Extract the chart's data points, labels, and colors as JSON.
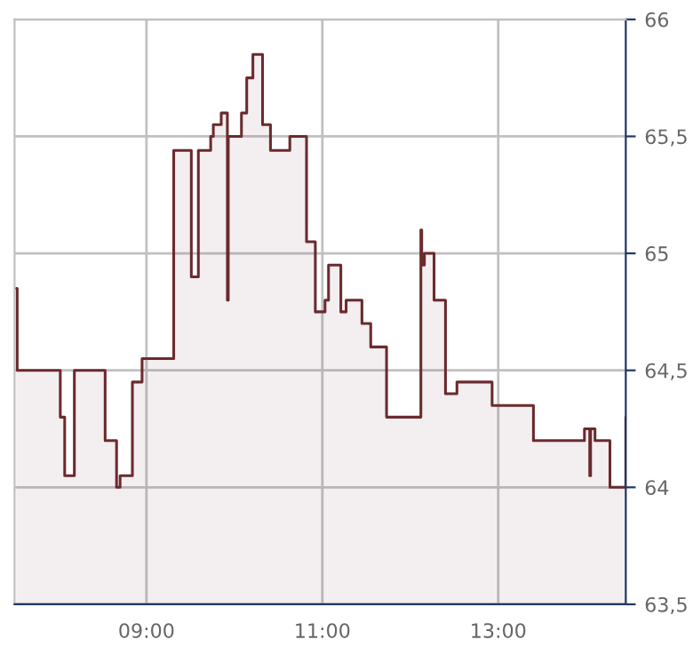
{
  "chart_data": {
    "type": "area",
    "x": [
      7.52,
      7.53,
      7.53,
      8.02,
      8.02,
      8.07,
      8.07,
      8.18,
      8.18,
      8.53,
      8.53,
      8.66,
      8.66,
      8.7,
      8.7,
      8.84,
      8.84,
      8.95,
      8.95,
      9.31,
      9.31,
      9.51,
      9.51,
      9.59,
      9.59,
      9.73,
      9.73,
      9.76,
      9.76,
      9.85,
      9.85,
      9.92,
      9.92,
      9.93,
      9.93,
      10.08,
      10.08,
      10.14,
      10.14,
      10.21,
      10.21,
      10.32,
      10.32,
      10.41,
      10.41,
      10.63,
      10.63,
      10.82,
      10.82,
      10.92,
      10.92,
      11.03,
      11.03,
      11.07,
      11.07,
      11.21,
      11.21,
      11.27,
      11.27,
      11.45,
      11.45,
      11.55,
      11.55,
      11.73,
      11.73,
      12.12,
      12.12,
      12.13,
      12.13,
      12.16,
      12.16,
      12.27,
      12.27,
      12.4,
      12.4,
      12.53,
      12.53,
      12.93,
      12.93,
      13.4,
      13.4,
      13.98,
      13.98,
      14.04,
      14.04,
      14.05,
      14.05,
      14.1,
      14.1,
      14.27,
      14.27,
      14.45,
      14.45
    ],
    "series": [
      {
        "color": "#6b2a2e",
        "values": [
          64.85,
          64.85,
          64.5,
          64.5,
          64.3,
          64.3,
          64.05,
          64.05,
          64.5,
          64.5,
          64.2,
          64.2,
          64.0,
          64.0,
          64.05,
          64.05,
          64.45,
          64.45,
          64.55,
          64.55,
          65.44,
          65.44,
          64.9,
          64.9,
          65.44,
          65.44,
          65.5,
          65.5,
          65.55,
          65.55,
          65.6,
          65.6,
          64.8,
          64.8,
          65.5,
          65.5,
          65.6,
          65.6,
          65.75,
          65.75,
          65.85,
          65.85,
          65.55,
          65.55,
          65.44,
          65.44,
          65.5,
          65.5,
          65.05,
          65.05,
          64.75,
          64.75,
          64.8,
          64.8,
          64.95,
          64.95,
          64.75,
          64.75,
          64.8,
          64.8,
          64.7,
          64.7,
          64.6,
          64.6,
          64.3,
          64.3,
          65.1,
          65.1,
          64.95,
          64.95,
          65.0,
          65.0,
          64.8,
          64.8,
          64.4,
          64.4,
          64.45,
          64.45,
          64.35,
          64.35,
          64.2,
          64.2,
          64.25,
          64.25,
          64.05,
          64.05,
          64.25,
          64.25,
          64.2,
          64.2,
          64.0,
          64.0,
          64.3
        ]
      }
    ],
    "xlim": [
      7.5,
      14.45
    ],
    "xticks": [
      {
        "value": 9,
        "label": "09:00"
      },
      {
        "value": 11,
        "label": "11:00"
      },
      {
        "value": 13,
        "label": "13:00"
      }
    ],
    "ylim": [
      63.5,
      66
    ],
    "yticks": [
      {
        "value": 63.5,
        "label": "63,5"
      },
      64,
      {
        "value": 64.5,
        "label": "64,5"
      },
      65,
      {
        "value": 65.5,
        "label": "65,5"
      },
      66
    ],
    "grid": true
  }
}
